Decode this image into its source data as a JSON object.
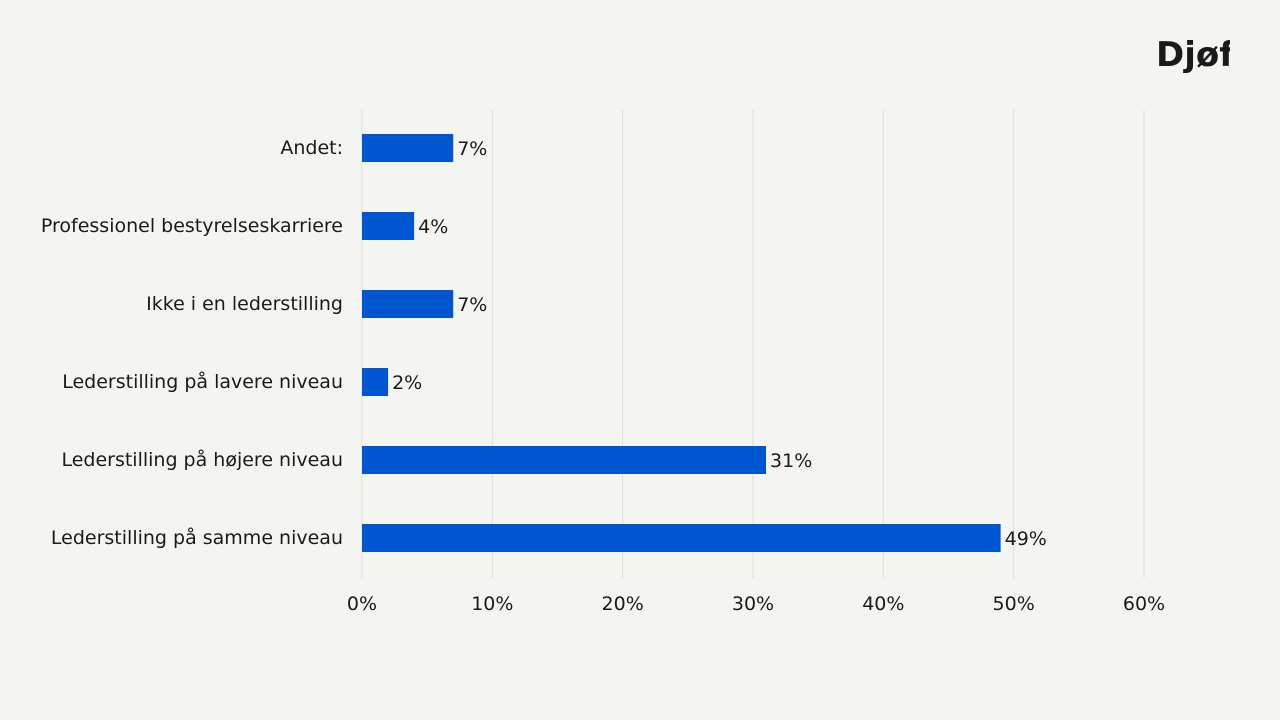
{
  "brand": {
    "logo_text": "Djøf"
  },
  "colors": {
    "background": "#f4f5f1",
    "bar": "#0055d0",
    "grid": "#dcddd9",
    "text": "#1a1a1a"
  },
  "chart_data": {
    "type": "bar",
    "orientation": "horizontal",
    "categories": [
      "Andet:",
      "Professionel bestyrelseskarriere",
      "Ikke i en lederstilling",
      "Lederstilling på lavere niveau",
      "Lederstilling på højere niveau",
      "Lederstilling på samme niveau"
    ],
    "values": [
      7,
      4,
      7,
      2,
      31,
      49
    ],
    "data_labels": [
      "7%",
      "4%",
      "7%",
      "2%",
      "31%",
      "49%"
    ],
    "xlim": [
      0,
      60
    ],
    "xticks": [
      0,
      10,
      20,
      30,
      40,
      50,
      60
    ],
    "xtick_labels": [
      "0%",
      "10%",
      "20%",
      "30%",
      "40%",
      "50%",
      "60%"
    ],
    "grid": true,
    "legend": "none"
  }
}
